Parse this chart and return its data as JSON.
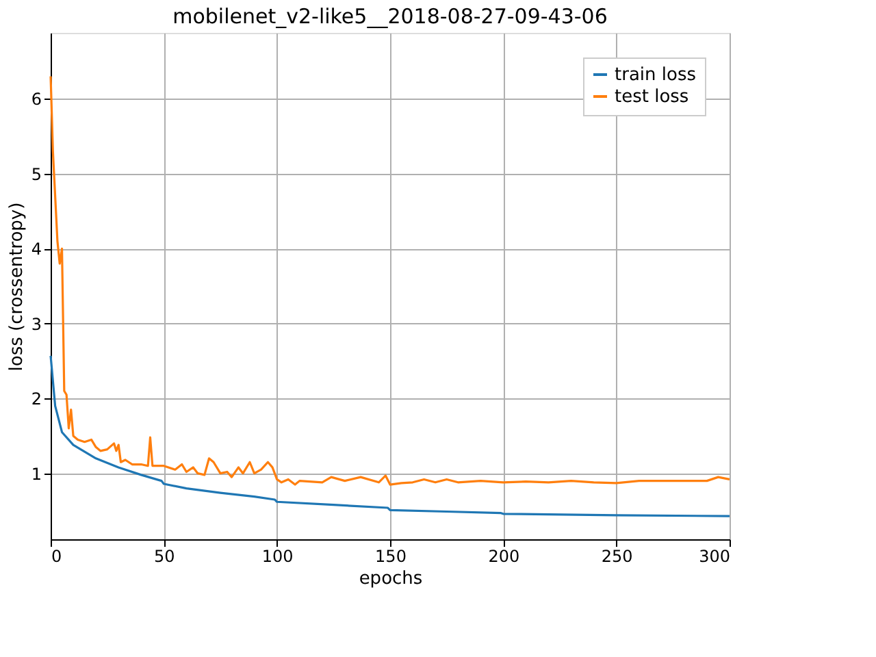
{
  "chart_data": {
    "type": "line",
    "title": "mobilenet_v2-like5__2018-08-27-09-43-06",
    "xlabel": "epochs",
    "ylabel": "loss (crossentropy)",
    "xlim": [
      0,
      300
    ],
    "xticks": [
      0,
      50,
      100,
      150,
      200,
      250,
      300
    ],
    "ylim": [
      0.12,
      6.88
    ],
    "yticks": [
      1,
      2,
      3,
      4,
      5,
      6
    ],
    "grid": true,
    "legend": "top right",
    "series": [
      {
        "name": "train loss",
        "color": "#1f77b4",
        "x": [
          0,
          2,
          5,
          10,
          20,
          30,
          40,
          49,
          50,
          60,
          75,
          90,
          99,
          100,
          125,
          149,
          150,
          175,
          199,
          200,
          250,
          300
        ],
        "values": [
          2.57,
          1.9,
          1.55,
          1.38,
          1.2,
          1.08,
          0.98,
          0.9,
          0.86,
          0.8,
          0.74,
          0.69,
          0.65,
          0.62,
          0.58,
          0.54,
          0.51,
          0.49,
          0.47,
          0.46,
          0.44,
          0.43
        ]
      },
      {
        "name": "test loss",
        "color": "#ff7f0e",
        "x": [
          0,
          1,
          3,
          4,
          5,
          6,
          7,
          8,
          9,
          10,
          12,
          15,
          18,
          20,
          22,
          25,
          28,
          29,
          30,
          31,
          33,
          36,
          40,
          43,
          44,
          45,
          47,
          50,
          55,
          58,
          60,
          63,
          65,
          68,
          70,
          72,
          75,
          78,
          80,
          83,
          85,
          88,
          90,
          93,
          96,
          98,
          100,
          102,
          105,
          108,
          110,
          120,
          124,
          130,
          137,
          145,
          148,
          150,
          155,
          160,
          165,
          170,
          175,
          180,
          190,
          200,
          210,
          220,
          230,
          240,
          250,
          260,
          270,
          280,
          290,
          295,
          300
        ],
        "values": [
          6.3,
          5.3,
          4.1,
          3.8,
          4.0,
          2.1,
          2.05,
          1.6,
          1.85,
          1.5,
          1.45,
          1.42,
          1.45,
          1.35,
          1.3,
          1.32,
          1.4,
          1.3,
          1.38,
          1.15,
          1.18,
          1.12,
          1.12,
          1.1,
          1.48,
          1.1,
          1.1,
          1.1,
          1.05,
          1.12,
          1.02,
          1.08,
          1.0,
          0.98,
          1.2,
          1.15,
          1.0,
          1.02,
          0.95,
          1.08,
          1.0,
          1.15,
          1.0,
          1.05,
          1.15,
          1.08,
          0.92,
          0.88,
          0.92,
          0.85,
          0.9,
          0.88,
          0.95,
          0.9,
          0.95,
          0.88,
          0.97,
          0.85,
          0.87,
          0.88,
          0.92,
          0.88,
          0.92,
          0.88,
          0.9,
          0.88,
          0.89,
          0.88,
          0.9,
          0.88,
          0.87,
          0.9,
          0.9,
          0.9,
          0.9,
          0.95,
          0.92
        ]
      }
    ]
  }
}
